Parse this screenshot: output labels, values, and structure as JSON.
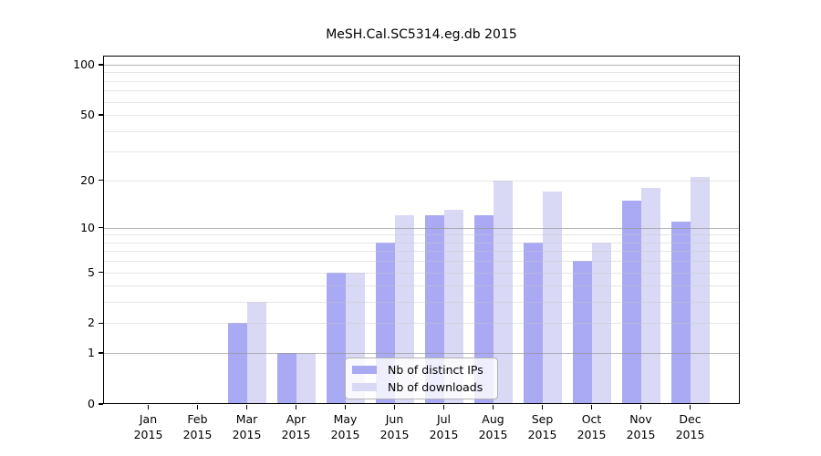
{
  "chart_data": {
    "type": "bar",
    "title": "MeSH.Cal.SC5314.eg.db 2015",
    "categories": [
      "Jan 2015",
      "Feb 2015",
      "Mar 2015",
      "Apr 2015",
      "May 2015",
      "Jun 2015",
      "Jul 2015",
      "Aug 2015",
      "Sep 2015",
      "Oct 2015",
      "Nov 2015",
      "Dec 2015"
    ],
    "series": [
      {
        "name": "Nb of distinct IPs",
        "color": "#a9a9f4",
        "values": [
          0,
          0,
          2,
          1,
          5,
          8,
          12,
          12,
          8,
          6,
          15,
          11
        ]
      },
      {
        "name": "Nb of downloads",
        "color": "#d9d9f6",
        "values": [
          0,
          0,
          3,
          1,
          5,
          12,
          13,
          20,
          17,
          8,
          18,
          21
        ]
      }
    ],
    "xlabel": "",
    "ylabel": "",
    "y_axis": {
      "scale": "log1p",
      "ticks": [
        0,
        1,
        2,
        5,
        10,
        20,
        50,
        100
      ],
      "ylim": [
        0,
        112
      ]
    },
    "gridlines": {
      "minor": [
        2,
        3,
        4,
        5,
        6,
        7,
        8,
        9,
        20,
        30,
        40,
        50,
        60,
        70,
        80,
        90
      ],
      "major": [
        1,
        10,
        100
      ]
    },
    "legend": {
      "position": "bottom-center",
      "entries": [
        "Nb of distinct IPs",
        "Nb of downloads"
      ]
    }
  },
  "colors": {
    "background": "#ffffff",
    "spine": "#000000",
    "grid_minor": "rgba(200,200,200,0.45)",
    "grid_major": "rgba(150,150,150,0.7)",
    "bar_ips": "#a9a9f4",
    "bar_downloads": "#d9d9f6"
  }
}
